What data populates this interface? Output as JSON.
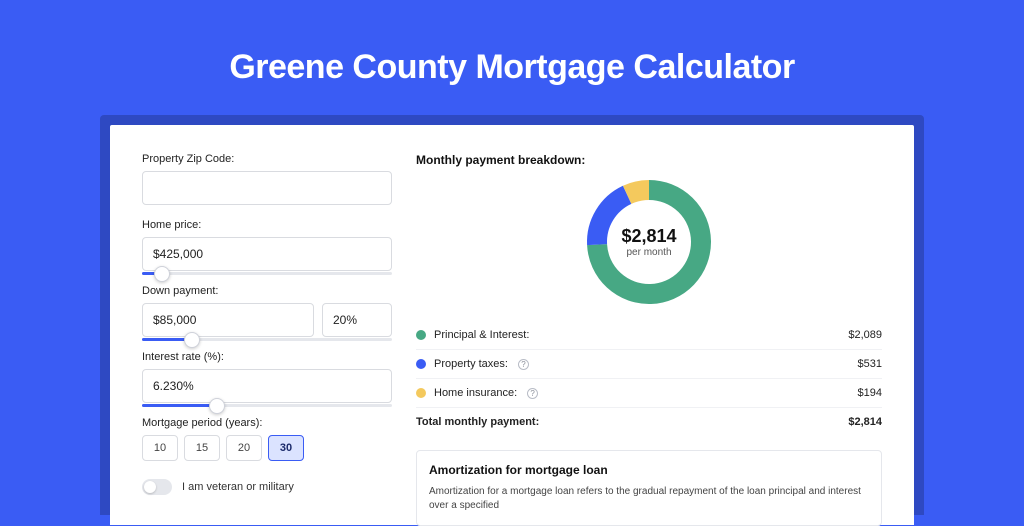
{
  "hero": {
    "title": "Greene County Mortgage Calculator"
  },
  "form": {
    "zip": {
      "label": "Property Zip Code:",
      "value": ""
    },
    "price": {
      "label": "Home price:",
      "value": "$425,000",
      "slider_pct": 8
    },
    "down": {
      "label": "Down payment:",
      "value": "$85,000",
      "pct_value": "20%",
      "slider_pct": 20
    },
    "rate": {
      "label": "Interest rate (%):",
      "value": "6.230%",
      "slider_pct": 30
    },
    "period": {
      "label": "Mortgage period (years):",
      "options": [
        "10",
        "15",
        "20",
        "30"
      ],
      "active": "30"
    },
    "veteran": {
      "label": "I am veteran or military",
      "on": false
    }
  },
  "breakdown": {
    "title": "Monthly payment breakdown:",
    "donut": {
      "center_amount": "$2,814",
      "center_sub": "per month",
      "slices": [
        {
          "name": "principal-interest",
          "color": "#47a884",
          "pct": 74.2
        },
        {
          "name": "property-taxes",
          "color": "#3a5cf4",
          "pct": 18.9
        },
        {
          "name": "home-insurance",
          "color": "#f4c95d",
          "pct": 6.9
        }
      ],
      "stroke_width": 20
    },
    "rows": [
      {
        "label": "Principal & Interest:",
        "color": "#47a884",
        "value": "$2,089",
        "info": false
      },
      {
        "label": "Property taxes:",
        "color": "#3a5cf4",
        "value": "$531",
        "info": true
      },
      {
        "label": "Home insurance:",
        "color": "#f4c95d",
        "value": "$194",
        "info": true
      }
    ],
    "total": {
      "label": "Total monthly payment:",
      "value": "$2,814"
    }
  },
  "amortization": {
    "title": "Amortization for mortgage loan",
    "body": "Amortization for a mortgage loan refers to the gradual repayment of the loan principal and interest over a specified"
  }
}
